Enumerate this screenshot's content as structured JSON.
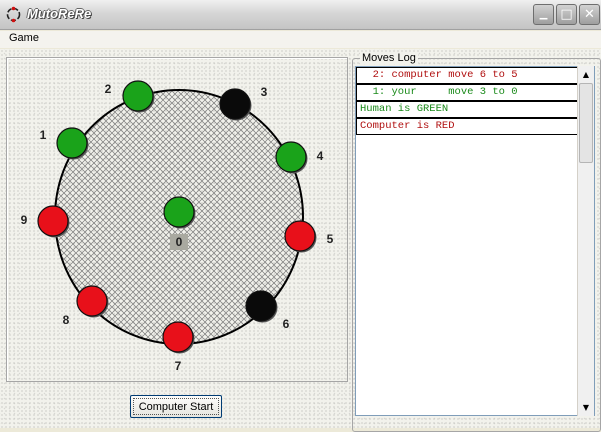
{
  "window": {
    "title": "MutoReRe",
    "min_glyph": "▁",
    "max_glyph": "□",
    "close_glyph": "✕"
  },
  "menu": {
    "game": "Game"
  },
  "board": {
    "center": {
      "label": "0",
      "piece": "green"
    },
    "positions": [
      {
        "label": "1",
        "piece": "green"
      },
      {
        "label": "2",
        "piece": "green"
      },
      {
        "label": "3",
        "piece": "black"
      },
      {
        "label": "4",
        "piece": "green"
      },
      {
        "label": "5",
        "piece": "red"
      },
      {
        "label": "6",
        "piece": "black"
      },
      {
        "label": "7",
        "piece": "red"
      },
      {
        "label": "8",
        "piece": "red"
      },
      {
        "label": "9",
        "piece": "red"
      }
    ],
    "colors": {
      "green": "#1aa31a",
      "red": "#e8101a",
      "black": "#0a0a0a"
    }
  },
  "moves_log": {
    "legend": "Moves Log",
    "entries": [
      {
        "text": "  2: computer move 6 to 5",
        "color": "#b01010"
      },
      {
        "text": "  1: your     move 3 to 0",
        "color": "#1a8a1a"
      },
      {
        "text": "Human is GREEN",
        "color": "#1a8a1a"
      },
      {
        "text": "Computer is RED",
        "color": "#b01010"
      }
    ]
  },
  "controls": {
    "start_button": "Computer Start"
  }
}
